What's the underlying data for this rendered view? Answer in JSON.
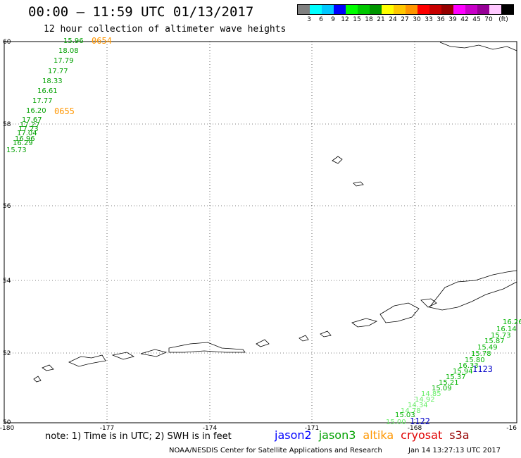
{
  "header": {
    "title": "00:00 – 11:59 UTC 01/13/2017",
    "subtitle": "12 hour collection of altimeter wave heights"
  },
  "legend": {
    "colors": [
      "#808080",
      "#00ffff",
      "#00c8ff",
      "#0000ff",
      "#00ff00",
      "#00c800",
      "#009600",
      "#ffff00",
      "#ffc800",
      "#ff9600",
      "#ff0000",
      "#c80000",
      "#960000",
      "#ff00ff",
      "#c800c8",
      "#960096",
      "#ffc8ff",
      "#000000"
    ],
    "labels": [
      "3",
      "6",
      "9",
      "12",
      "15",
      "18",
      "21",
      "24",
      "27",
      "30",
      "33",
      "36",
      "39",
      "42",
      "45",
      "70"
    ],
    "unit": "(ft)"
  },
  "axes": {
    "lon_labels": [
      "-180",
      "-177",
      "-174",
      "-171",
      "-168",
      "-16"
    ],
    "lat_labels": [
      "60",
      "58",
      "56",
      "54",
      "52",
      "50"
    ]
  },
  "passes": {
    "track_a": {
      "color": "#00a000",
      "values": [
        "15.96",
        "18.08",
        "17.79",
        "17.77",
        "18.33",
        "16.61",
        "17.77",
        "16.20",
        "17.67",
        "17.27",
        "17.23",
        "17.04",
        "16.96",
        "16.29",
        "15.73"
      ],
      "times": [
        {
          "label": "0654",
          "color": "#ff9600"
        },
        {
          "label": "0655",
          "color": "#ff9600"
        }
      ]
    },
    "track_b": {
      "values": [
        {
          "v": "16.26",
          "c": "#00b400"
        },
        {
          "v": "16.14",
          "c": "#00b400"
        },
        {
          "v": "15.73",
          "c": "#00b400"
        },
        {
          "v": "15.87",
          "c": "#00b400"
        },
        {
          "v": "15.49",
          "c": "#00b400"
        },
        {
          "v": "15.78",
          "c": "#00b400"
        },
        {
          "v": "15.80",
          "c": "#00b400"
        },
        {
          "v": "16.33",
          "c": "#00b400"
        },
        {
          "v": "15.94",
          "c": "#00b400"
        },
        {
          "v": "15.37",
          "c": "#00b400"
        },
        {
          "v": "15.21",
          "c": "#00b400"
        },
        {
          "v": "15.09",
          "c": "#00b400"
        },
        {
          "v": "14.85",
          "c": "#66ee66"
        },
        {
          "v": "14.92",
          "c": "#66ee66"
        },
        {
          "v": "14.34",
          "c": "#66ee66"
        },
        {
          "v": "14.78",
          "c": "#66ee66"
        },
        {
          "v": "15.03",
          "c": "#00b400"
        },
        {
          "v": "15.00",
          "c": "#66ee66"
        }
      ],
      "times": [
        {
          "label": "1123",
          "color": "#0000c8"
        },
        {
          "label": "1122",
          "color": "#0000c8"
        }
      ]
    }
  },
  "footer": {
    "note": "note: 1) Time is in UTC; 2) SWH is in feet",
    "satellites": [
      {
        "name": "jason2",
        "color": "#0000ff"
      },
      {
        "name": "jason3",
        "color": "#00a000"
      },
      {
        "name": "altika",
        "color": "#ff9600"
      },
      {
        "name": "cryosat",
        "color": "#e00000"
      },
      {
        "name": "s3a",
        "color": "#960000"
      }
    ],
    "credit": "NOAA/NESDIS Center for Satellite Applications and Research",
    "generated": "Jan 14 13:27:13 UTC 2017"
  }
}
